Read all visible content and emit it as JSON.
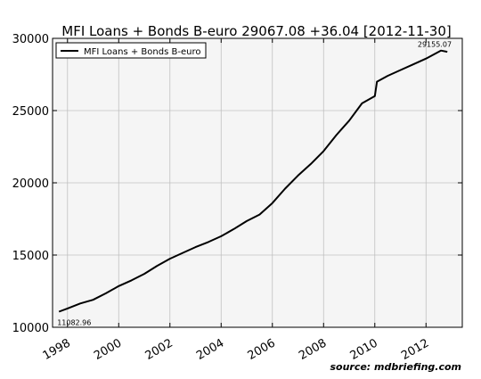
{
  "chart_data": {
    "type": "line",
    "title": "MFI Loans + Bonds B-euro 29067.08 +36.04 [2012-11-30]",
    "xlabel": "",
    "ylabel": "",
    "ylim": [
      10000,
      30000
    ],
    "xlim": [
      "1997-06",
      "2013-06"
    ],
    "grid": true,
    "legend_position": "top-left",
    "x_tick_labels": [
      "1998",
      "2000",
      "2002",
      "2004",
      "2006",
      "2008",
      "2010",
      "2012"
    ],
    "y_tick_labels": [
      "10000",
      "15000",
      "20000",
      "25000",
      "30000"
    ],
    "annotations": [
      {
        "text": "11082.96",
        "x": "1997-09",
        "y": 11083
      },
      {
        "text": "29155.07",
        "x": "2012-08",
        "y": 29155
      }
    ],
    "series": [
      {
        "name": "MFI Loans + Bonds B-euro",
        "color": "#000000",
        "points": [
          [
            "1997-09",
            11083
          ],
          [
            "1998-01",
            11300
          ],
          [
            "1998-07",
            11650
          ],
          [
            "1999-01",
            11900
          ],
          [
            "1999-07",
            12350
          ],
          [
            "2000-01",
            12850
          ],
          [
            "2000-07",
            13250
          ],
          [
            "2001-01",
            13700
          ],
          [
            "2001-07",
            14250
          ],
          [
            "2002-01",
            14750
          ],
          [
            "2002-07",
            15150
          ],
          [
            "2003-01",
            15550
          ],
          [
            "2003-07",
            15900
          ],
          [
            "2004-01",
            16300
          ],
          [
            "2004-07",
            16800
          ],
          [
            "2005-01",
            17350
          ],
          [
            "2005-07",
            17800
          ],
          [
            "2006-01",
            18600
          ],
          [
            "2006-07",
            19600
          ],
          [
            "2007-01",
            20500
          ],
          [
            "2007-07",
            21300
          ],
          [
            "2008-01",
            22200
          ],
          [
            "2008-07",
            23300
          ],
          [
            "2009-01",
            24300
          ],
          [
            "2009-07",
            25500
          ],
          [
            "2010-01",
            26000
          ],
          [
            "2010-02",
            27000
          ],
          [
            "2010-07",
            27400
          ],
          [
            "2011-01",
            27800
          ],
          [
            "2011-07",
            28200
          ],
          [
            "2012-01",
            28600
          ],
          [
            "2012-08",
            29155
          ],
          [
            "2012-11",
            29067
          ]
        ]
      }
    ]
  },
  "source": "source: mdbriefing.com"
}
